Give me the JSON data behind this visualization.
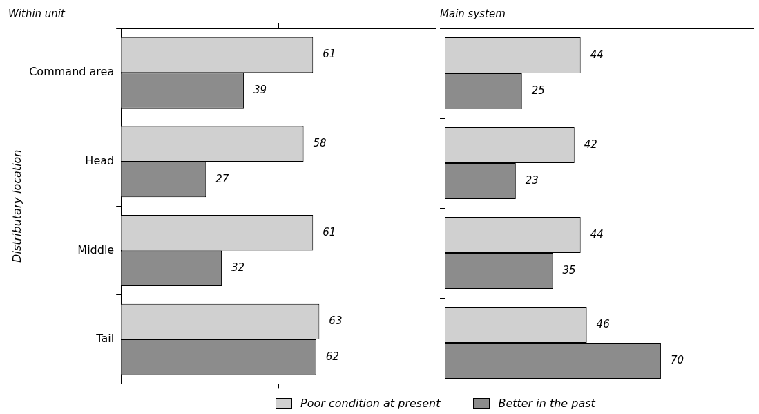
{
  "chart_data": [
    {
      "type": "bar",
      "orientation": "horizontal",
      "title": "Within unit",
      "ylabel": "Distributary location",
      "categories": [
        "Command area",
        "Head",
        "Middle",
        "Tail"
      ],
      "series": [
        {
          "name": "Poor condition at present",
          "color": "#d0d0d0",
          "values": [
            61,
            58,
            61,
            63
          ]
        },
        {
          "name": "Better in the past",
          "color": "#8c8c8c",
          "values": [
            39,
            27,
            32,
            62
          ]
        }
      ],
      "xlim": [
        0,
        100
      ],
      "xticks": [
        {
          "value": 50,
          "label": null
        }
      ],
      "data_labels": true,
      "legend": "bottom",
      "tick_labels": "y"
    },
    {
      "type": "bar",
      "orientation": "horizontal",
      "title": "Main system",
      "categories": [
        null,
        null,
        null,
        null
      ],
      "series": [
        {
          "color": "#d0d0d0",
          "values": [
            44,
            42,
            44,
            46
          ]
        },
        {
          "color": "#8c8c8c",
          "values": [
            25,
            23,
            35,
            70
          ]
        }
      ],
      "xlim": [
        0,
        100
      ],
      "xticks": [
        {
          "value": 50,
          "label": null
        }
      ],
      "data_labels": true,
      "tick_labels": false
    }
  ]
}
